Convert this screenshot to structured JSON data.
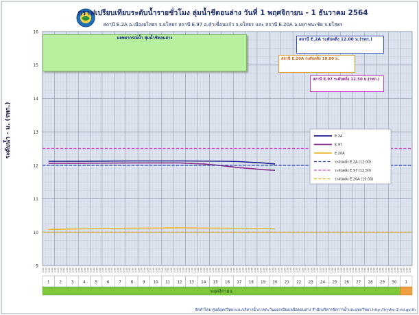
{
  "title": "กราฟเปรียบเทียบระดับน้ำรายชั่วโมง ลุ่มน้ำชีตอนล่าง วันที่ 1 พฤศจิกายน - 1 ธันวาคม 2564",
  "subtitle": "สถานี E.2A อ.เมืองยโสธร จ.ยโสธร สถานี E.97 อ.คำเขื่อนแก้ว จ.ยโสธร และ สถานี E.20A อ.มหาชนะชัย จ.ยโสธร",
  "footer": "จัดทำโดย ศูนย์อุทกวิทยาและบริหารน้ำภาคตะวันออกเฉียงเหนือตอนล่าง สำนักบริหารจัดการน้ำและอุทกวิทยา   http://hydro-3.rid.go.th",
  "colors": {
    "e2a": "#1a1a8c",
    "e97": "#8a2a8a",
    "e20a": "#e8b830",
    "bank_e2a": "#1f3fbf",
    "bank_e97": "#d040d0",
    "bank_e20a": "#e0b020",
    "plot_bg": "#dce3ee",
    "forecast_bg": "#b9f0a0",
    "date_green": "#7ec63e",
    "date_orange": "#f0a040"
  },
  "forecast": {
    "title": "ผลพยากรณ์น้ำ ลุ่มน้ำชีตอนล่าง",
    "lines": []
  },
  "notes": [
    {
      "title": "สถานี E.2A ระดับตลิ่ง 12.00 ม.(รทก.)",
      "text": "",
      "border": "#3050c0",
      "color": "#1a2a9a"
    },
    {
      "title": "สถานี E.20A ระดับตลิ่ง 10.00 ม.",
      "text": "",
      "border": "#e0a030",
      "color": "#c06010"
    },
    {
      "title": "สถานี E.97 ระดับตลิ่ง 12.50 ม.(รทก.)",
      "text": "",
      "border": "#c040c0",
      "color": "#8a208a"
    }
  ],
  "chart_data": {
    "type": "line",
    "title": "กราฟเปรียบเทียบระดับน้ำรายชั่วโมง ลุ่มน้ำชีตอนล่าง วันที่ 1 พฤศจิกายน - 1 ธันวาคม 2564",
    "xlabel": "พฤศจิกายน",
    "ylabel": "ระดับน้ำ - ม. (รทก.)",
    "ylim": [
      9,
      16
    ],
    "yticks": [
      9,
      10,
      11,
      12,
      13,
      14,
      15,
      16
    ],
    "xlim": [
      1,
      31
    ],
    "days": [
      1,
      2,
      3,
      4,
      5,
      6,
      7,
      8,
      9,
      10,
      11,
      12,
      13,
      14,
      15,
      16,
      17,
      18,
      19,
      20,
      21,
      22,
      23,
      24,
      25,
      26,
      27,
      28,
      29,
      30,
      1
    ],
    "grid": true,
    "legend_position": "center-right",
    "series": [
      {
        "name": "E.2A",
        "style": "solid",
        "color": "#1a1a8c",
        "x": [
          1,
          4,
          8,
          12,
          16,
          17,
          18,
          19,
          20
        ],
        "y": [
          12.12,
          12.12,
          12.13,
          12.13,
          12.12,
          12.11,
          12.09,
          12.07,
          12.04
        ]
      },
      {
        "name": "E.97",
        "style": "solid",
        "color": "#8a2a8a",
        "x": [
          1,
          4,
          8,
          12,
          14,
          15,
          16,
          17,
          18,
          19,
          20
        ],
        "y": [
          12.06,
          12.06,
          12.07,
          12.07,
          12.04,
          12.01,
          11.97,
          11.93,
          11.9,
          11.87,
          11.85
        ]
      },
      {
        "name": "E.20A",
        "style": "solid",
        "color": "#e8b830",
        "x": [
          1,
          4,
          8,
          12,
          16,
          19,
          20
        ],
        "y": [
          10.08,
          10.1,
          10.12,
          10.13,
          10.12,
          10.11,
          10.1
        ]
      },
      {
        "name": "ระดับตลิ่ง E.2A (12.00)",
        "style": "dashed",
        "color": "#1f3fbf",
        "x": [
          1,
          31
        ],
        "y": [
          12.0,
          12.0
        ]
      },
      {
        "name": "ระดับตลิ่ง E.97 (12.50)",
        "style": "dashed",
        "color": "#d040d0",
        "x": [
          1,
          31
        ],
        "y": [
          12.5,
          12.5
        ]
      },
      {
        "name": "ระดับตลิ่ง E.20A (10.00)",
        "style": "dashed",
        "color": "#e0b020",
        "x": [
          1,
          31
        ],
        "y": [
          10.0,
          10.0
        ]
      }
    ]
  }
}
